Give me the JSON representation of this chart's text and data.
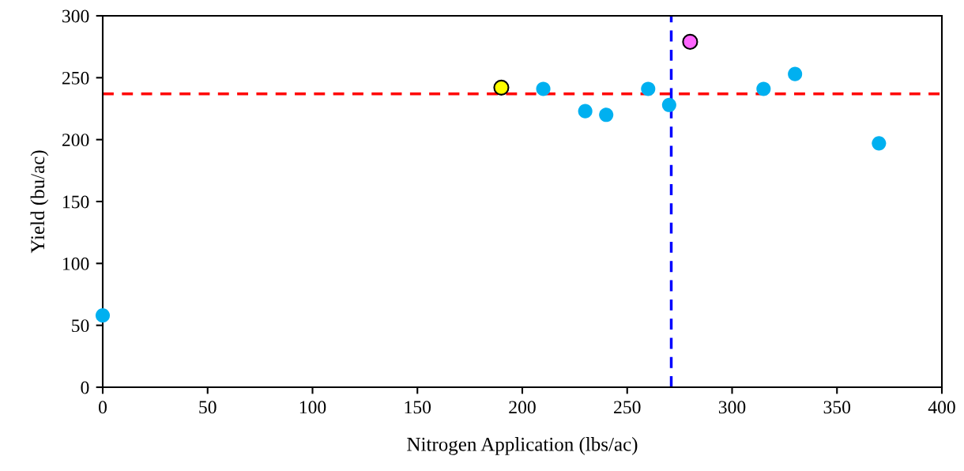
{
  "chart_data": {
    "type": "scatter",
    "xlabel": "Nitrogen Application (lbs/ac)",
    "ylabel": "Yield (bu/ac)",
    "series": [
      {
        "color": "#00b0f0",
        "x": [
          0,
          210,
          230,
          240,
          260,
          270,
          315,
          330,
          370
        ],
        "values": [
          58,
          241,
          223,
          220,
          241,
          228,
          241,
          253,
          197
        ]
      },
      {
        "color": "#ffff00",
        "x": [
          190
        ],
        "values": [
          242
        ]
      },
      {
        "color": "#ff66ff",
        "x": [
          280
        ],
        "values": [
          279
        ]
      }
    ],
    "xlim": [
      0,
      400
    ],
    "xticks": [
      0,
      50,
      100,
      150,
      200,
      250,
      300,
      350,
      400
    ],
    "ylim": [
      0,
      300
    ],
    "yticks": [
      0,
      50,
      100,
      150,
      200,
      250,
      300
    ],
    "ref_lines": [
      {
        "axis": "y",
        "value": 237,
        "label": null,
        "color": "#ff0000",
        "line_style": "dashed"
      },
      {
        "axis": "x",
        "value": 271,
        "label": null,
        "color": "#0000ff",
        "line_style": "dashed"
      }
    ],
    "grid": false,
    "legend": false,
    "marker": "circle"
  }
}
